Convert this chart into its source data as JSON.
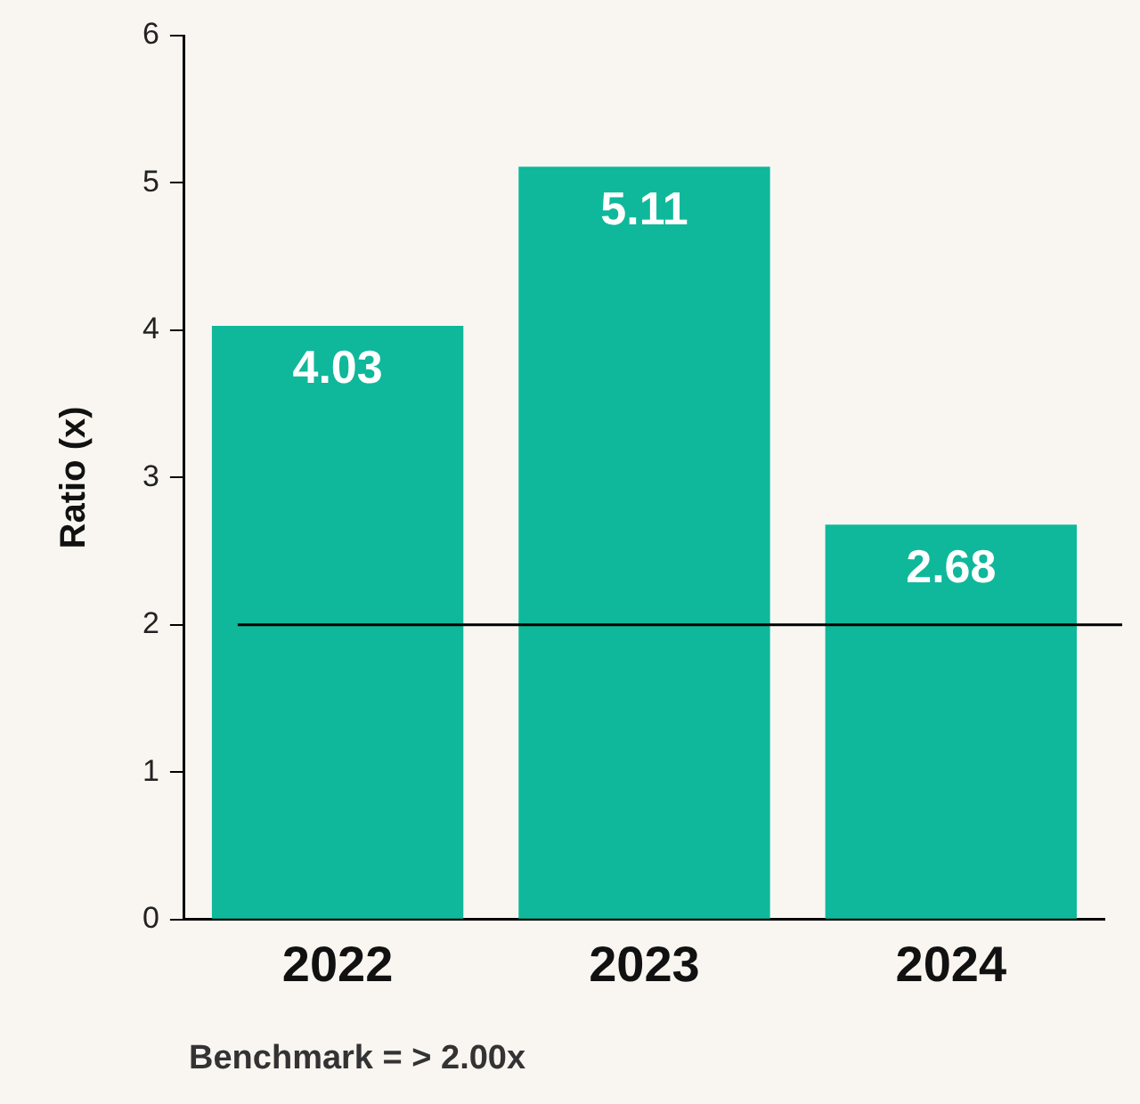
{
  "chart_data": {
    "type": "bar",
    "ylabel": "Ratio (x)",
    "categories": [
      "2022",
      "2023",
      "2024"
    ],
    "values": [
      4.03,
      5.11,
      2.68
    ],
    "color": "#0fb89a",
    "ylim": [
      0,
      6
    ],
    "yticks": [
      0,
      1,
      2,
      3,
      4,
      5,
      6
    ],
    "grid": false,
    "data_labels": true,
    "ref_lines": [
      {
        "axis": "y",
        "value": 2,
        "color": "#000000"
      }
    ],
    "annotations": [
      "Benchmark = > 2.00x"
    ]
  }
}
